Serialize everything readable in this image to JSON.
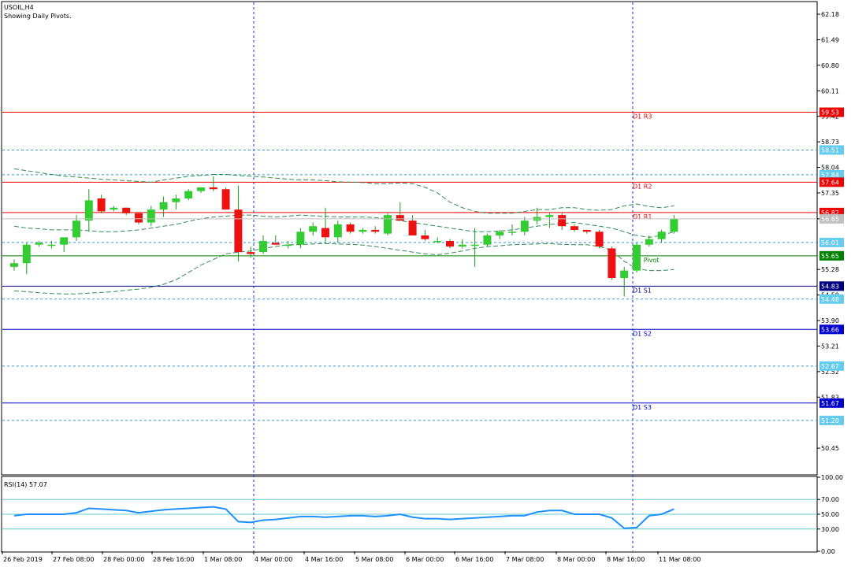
{
  "window": {
    "symbol_label": "USOIL,H4",
    "indicator_note": "Showing Daily Pivots."
  },
  "chart_data": [
    {
      "type": "candlestick",
      "title": "USOIL,H4",
      "subtitle": "Showing Daily Pivots.",
      "ylim": [
        49.75,
        62.5
      ],
      "y_ticks": [
        62.18,
        61.49,
        60.8,
        60.11,
        59.42,
        58.73,
        58.04,
        57.35,
        56.65,
        55.28,
        54.59,
        53.9,
        53.21,
        52.52,
        51.83,
        50.45
      ],
      "x_ticks": [
        "26 Feb 2019",
        "27 Feb 08:00",
        "28 Feb 00:00",
        "28 Feb 16:00",
        "1 Mar 08:00",
        "4 Mar 00:00",
        "4 Mar 16:00",
        "5 Mar 08:00",
        "6 Mar 00:00",
        "6 Mar 16:00",
        "7 Mar 08:00",
        "8 Mar 00:00",
        "8 Mar 16:00",
        "11 Mar 08:00"
      ],
      "grid": false,
      "candles": [
        {
          "o": 55.35,
          "h": 55.55,
          "l": 55.25,
          "c": 55.45
        },
        {
          "o": 55.45,
          "h": 56.0,
          "l": 55.15,
          "c": 55.95
        },
        {
          "o": 55.95,
          "h": 56.05,
          "l": 55.9,
          "c": 56.0
        },
        {
          "o": 55.95,
          "h": 56.05,
          "l": 55.85,
          "c": 55.95
        },
        {
          "o": 55.95,
          "h": 56.1,
          "l": 55.75,
          "c": 56.15
        },
        {
          "o": 56.15,
          "h": 56.75,
          "l": 56.05,
          "c": 56.6
        },
        {
          "o": 56.6,
          "h": 57.45,
          "l": 56.3,
          "c": 57.15
        },
        {
          "o": 57.2,
          "h": 57.3,
          "l": 56.8,
          "c": 56.85
        },
        {
          "o": 56.9,
          "h": 57.0,
          "l": 56.85,
          "c": 56.95
        },
        {
          "o": 56.95,
          "h": 56.95,
          "l": 56.75,
          "c": 56.8
        },
        {
          "o": 56.8,
          "h": 56.8,
          "l": 56.5,
          "c": 56.55
        },
        {
          "o": 56.55,
          "h": 57.0,
          "l": 56.45,
          "c": 56.9
        },
        {
          "o": 56.9,
          "h": 57.25,
          "l": 56.7,
          "c": 57.1
        },
        {
          "o": 57.1,
          "h": 57.3,
          "l": 56.9,
          "c": 57.2
        },
        {
          "o": 57.2,
          "h": 57.45,
          "l": 57.15,
          "c": 57.4
        },
        {
          "o": 57.4,
          "h": 57.5,
          "l": 57.35,
          "c": 57.5
        },
        {
          "o": 57.5,
          "h": 57.8,
          "l": 57.4,
          "c": 57.45
        },
        {
          "o": 57.45,
          "h": 57.5,
          "l": 56.9,
          "c": 56.9
        },
        {
          "o": 56.9,
          "h": 57.55,
          "l": 55.5,
          "c": 55.75
        },
        {
          "o": 55.75,
          "h": 55.9,
          "l": 55.6,
          "c": 55.7
        },
        {
          "o": 55.75,
          "h": 56.2,
          "l": 55.7,
          "c": 56.05
        },
        {
          "o": 56.0,
          "h": 56.2,
          "l": 55.95,
          "c": 55.95
        },
        {
          "o": 55.95,
          "h": 56.05,
          "l": 55.85,
          "c": 55.95
        },
        {
          "o": 55.95,
          "h": 56.4,
          "l": 55.85,
          "c": 56.3
        },
        {
          "o": 56.3,
          "h": 56.55,
          "l": 56.2,
          "c": 56.45
        },
        {
          "o": 56.4,
          "h": 56.95,
          "l": 56.0,
          "c": 56.15
        },
        {
          "o": 56.15,
          "h": 56.6,
          "l": 56.0,
          "c": 56.5
        },
        {
          "o": 56.5,
          "h": 56.55,
          "l": 56.25,
          "c": 56.3
        },
        {
          "o": 56.3,
          "h": 56.4,
          "l": 56.25,
          "c": 56.35
        },
        {
          "o": 56.35,
          "h": 56.45,
          "l": 56.25,
          "c": 56.3
        },
        {
          "o": 56.25,
          "h": 56.8,
          "l": 56.2,
          "c": 56.75
        },
        {
          "o": 56.75,
          "h": 57.1,
          "l": 56.6,
          "c": 56.6
        },
        {
          "o": 56.6,
          "h": 56.75,
          "l": 56.25,
          "c": 56.2
        },
        {
          "o": 56.2,
          "h": 56.35,
          "l": 56.05,
          "c": 56.1
        },
        {
          "o": 56.05,
          "h": 56.15,
          "l": 56.0,
          "c": 56.05
        },
        {
          "o": 56.05,
          "h": 56.1,
          "l": 55.85,
          "c": 55.9
        },
        {
          "o": 55.9,
          "h": 56.1,
          "l": 55.85,
          "c": 55.95
        },
        {
          "o": 55.95,
          "h": 56.4,
          "l": 55.35,
          "c": 55.95
        },
        {
          "o": 55.95,
          "h": 56.25,
          "l": 55.9,
          "c": 56.2
        },
        {
          "o": 56.2,
          "h": 56.35,
          "l": 56.1,
          "c": 56.3
        },
        {
          "o": 56.3,
          "h": 56.5,
          "l": 56.2,
          "c": 56.3
        },
        {
          "o": 56.3,
          "h": 56.7,
          "l": 56.2,
          "c": 56.6
        },
        {
          "o": 56.6,
          "h": 56.95,
          "l": 56.5,
          "c": 56.7
        },
        {
          "o": 56.7,
          "h": 56.8,
          "l": 56.4,
          "c": 56.75
        },
        {
          "o": 56.75,
          "h": 56.8,
          "l": 56.35,
          "c": 56.45
        },
        {
          "o": 56.45,
          "h": 56.5,
          "l": 56.3,
          "c": 56.35
        },
        {
          "o": 56.35,
          "h": 56.35,
          "l": 56.25,
          "c": 56.3
        },
        {
          "o": 56.3,
          "h": 56.35,
          "l": 55.85,
          "c": 55.9
        },
        {
          "o": 55.85,
          "h": 55.9,
          "l": 55.0,
          "c": 55.05
        },
        {
          "o": 55.05,
          "h": 55.35,
          "l": 54.55,
          "c": 55.25
        },
        {
          "o": 55.25,
          "h": 56.0,
          "l": 55.2,
          "c": 55.95
        },
        {
          "o": 55.95,
          "h": 56.2,
          "l": 55.9,
          "c": 56.1
        },
        {
          "o": 56.1,
          "h": 56.35,
          "l": 56.0,
          "c": 56.3
        },
        {
          "o": 56.3,
          "h": 56.75,
          "l": 56.25,
          "c": 56.65
        }
      ],
      "bands": {
        "upper": [
          58.0,
          57.95,
          57.9,
          57.85,
          57.8,
          57.78,
          57.75,
          57.72,
          57.7,
          57.68,
          57.66,
          57.64,
          57.7,
          57.75,
          57.8,
          57.82,
          57.85,
          57.85,
          57.82,
          57.8,
          57.78,
          57.75,
          57.72,
          57.7,
          57.7,
          57.68,
          57.65,
          57.64,
          57.63,
          57.6,
          57.6,
          57.62,
          57.6,
          57.5,
          57.35,
          57.1,
          56.95,
          56.85,
          56.8,
          56.8,
          56.8,
          56.85,
          56.9,
          56.9,
          56.95,
          56.95,
          56.9,
          56.88,
          56.9,
          57.0,
          57.05,
          56.98,
          56.95,
          57.0
        ],
        "middle": [
          56.45,
          56.4,
          56.38,
          56.35,
          56.35,
          56.35,
          56.33,
          56.3,
          56.3,
          56.32,
          56.35,
          56.4,
          56.45,
          56.5,
          56.58,
          56.65,
          56.7,
          56.72,
          56.75,
          56.75,
          56.72,
          56.7,
          56.72,
          56.75,
          56.73,
          56.72,
          56.7,
          56.7,
          56.7,
          56.68,
          56.65,
          56.6,
          56.55,
          56.5,
          56.45,
          56.4,
          56.35,
          56.3,
          56.3,
          56.32,
          56.35,
          56.4,
          56.45,
          56.5,
          56.52,
          56.55,
          56.5,
          56.45,
          56.4,
          56.3,
          56.2,
          56.15,
          56.2,
          56.3
        ],
        "lower": [
          54.7,
          54.68,
          54.65,
          54.63,
          54.62,
          54.62,
          54.64,
          54.66,
          54.68,
          54.72,
          54.75,
          54.8,
          54.88,
          55.0,
          55.2,
          55.4,
          55.55,
          55.7,
          55.75,
          55.78,
          55.85,
          55.9,
          55.95,
          55.95,
          55.97,
          55.98,
          55.97,
          55.96,
          55.94,
          55.9,
          55.85,
          55.8,
          55.75,
          55.7,
          55.68,
          55.72,
          55.78,
          55.85,
          55.9,
          55.92,
          55.95,
          55.96,
          55.97,
          55.98,
          55.96,
          55.95,
          55.95,
          55.9,
          55.8,
          55.5,
          55.3,
          55.25,
          55.25,
          55.28
        ]
      },
      "pivots": [
        {
          "label": "D1 R3",
          "value": 59.53,
          "color": "#ee0000"
        },
        {
          "label": "D1 R2",
          "value": 57.64,
          "color": "#ee0000"
        },
        {
          "label": "D1 R1",
          "value": 56.82,
          "color": "#ee0000"
        },
        {
          "label": "D1 Pivot",
          "value": 55.65,
          "color": "#008000"
        },
        {
          "label": "D1 S1",
          "value": 54.83,
          "color": "#000080"
        },
        {
          "label": "D1 S2",
          "value": 53.66,
          "color": "#0000cc"
        },
        {
          "label": "D1 S3",
          "value": 51.67,
          "color": "#0000cc"
        }
      ],
      "levels": [
        58.51,
        57.84,
        56.01,
        54.48,
        52.67,
        51.2
      ],
      "current_price": 56.65,
      "colors": {
        "bull": "#33cc33",
        "bear": "#ee1111",
        "band": "#2e8b57",
        "level": "#3399cc",
        "price_tag": "#c0c0c0"
      }
    },
    {
      "type": "line",
      "title": "RSI(14) 57.07",
      "ylim": [
        0,
        100
      ],
      "y_ticks": [
        100.0,
        70.0,
        50.0,
        30.0,
        0.0
      ],
      "y_tick_labels": [
        "100.00",
        "70.00",
        "50.00",
        "30.00",
        "0.00"
      ],
      "levels": [
        70,
        50,
        30
      ],
      "series": [
        {
          "values": [
            48,
            50,
            50,
            50,
            50,
            52,
            58,
            57,
            56,
            55,
            52,
            54,
            56,
            57,
            58,
            59,
            60,
            57,
            40,
            39,
            42,
            43,
            45,
            47,
            47,
            46,
            47,
            48,
            48,
            47,
            48,
            50,
            46,
            44,
            44,
            43,
            44,
            45,
            46,
            47,
            48,
            48,
            53,
            55,
            55,
            50,
            50,
            50,
            45,
            31,
            32,
            48,
            50,
            57
          ]
        }
      ],
      "colors": {
        "line": "#1e90ff",
        "level": "#66cccc"
      }
    }
  ]
}
